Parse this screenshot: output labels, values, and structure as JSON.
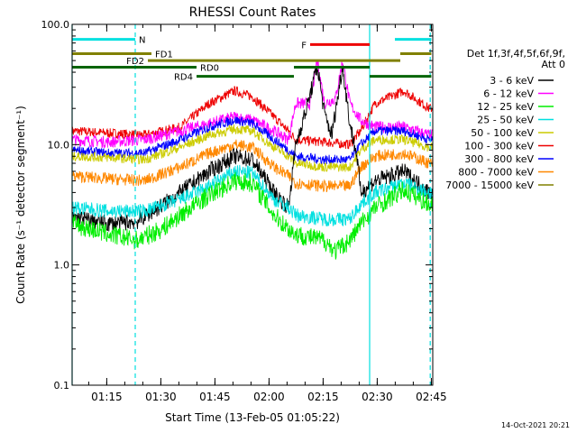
{
  "chart_data": {
    "type": "line",
    "title": "RHESSI Count Rates",
    "xlabel": "Start Time (13-Feb-05 01:05:22)",
    "ylabel": "Count Rate (s⁻¹ detector segment⁻¹)",
    "y_scale": "log",
    "ylim": [
      0.1,
      100.0
    ],
    "xlim_minutes": [
      0.0,
      100.0
    ],
    "yticks": [
      {
        "value": 0.1,
        "label": "0.1"
      },
      {
        "value": 1.0,
        "label": "1.0"
      },
      {
        "value": 10.0,
        "label": "10.0"
      },
      {
        "value": 100.0,
        "label": "100.0"
      }
    ],
    "xticks": [
      {
        "minutes": 9.6,
        "label": "01:15"
      },
      {
        "minutes": 24.6,
        "label": "01:30"
      },
      {
        "minutes": 39.6,
        "label": "01:45"
      },
      {
        "minutes": 54.6,
        "label": "02:00"
      },
      {
        "minutes": 69.6,
        "label": "02:15"
      },
      {
        "minutes": 84.6,
        "label": "02:30"
      },
      {
        "minutes": 99.6,
        "label": "02:45"
      }
    ],
    "legend": {
      "placement": "right",
      "header": [
        "Det 1f,3f,4f,5f,6f,9f,",
        "Att 0"
      ],
      "entries": [
        {
          "label": "3 - 6 keV",
          "color": "#000000"
        },
        {
          "label": "6 - 12 keV",
          "color": "#ff00ff"
        },
        {
          "label": "12 - 25 keV",
          "color": "#00ee00"
        },
        {
          "label": "25 - 50 keV",
          "color": "#00e0e0"
        },
        {
          "label": "50 - 100 keV",
          "color": "#cccc00"
        },
        {
          "label": "100 - 300 keV",
          "color": "#ee0000"
        },
        {
          "label": "300 - 800 keV",
          "color": "#0000ff"
        },
        {
          "label": "800 - 7000 keV",
          "color": "#ff8800"
        },
        {
          "label": "7000 - 15000 keV",
          "color": "#808000"
        }
      ]
    },
    "series": [
      {
        "band": "100 - 300 keV",
        "color": "#ee0000",
        "noise": 0.04,
        "points": [
          [
            0,
            13
          ],
          [
            10,
            12.5
          ],
          [
            20,
            12
          ],
          [
            30,
            14
          ],
          [
            38,
            22
          ],
          [
            45,
            28
          ],
          [
            50,
            25
          ],
          [
            56,
            17
          ],
          [
            60,
            13
          ],
          [
            62,
            11
          ],
          [
            70,
            10.5
          ],
          [
            77,
            10
          ],
          [
            80,
            13
          ],
          [
            84,
            22
          ],
          [
            92,
            28
          ],
          [
            99,
            20
          ]
        ]
      },
      {
        "band": "6 - 12 keV",
        "color": "#ff00ff",
        "noise": 0.05,
        "points": [
          [
            0,
            11
          ],
          [
            10,
            10.5
          ],
          [
            20,
            11
          ],
          [
            30,
            13
          ],
          [
            38,
            15
          ],
          [
            45,
            17
          ],
          [
            50,
            16
          ],
          [
            56,
            13
          ],
          [
            60,
            11
          ],
          [
            62,
            22
          ],
          [
            66,
            22
          ],
          [
            68,
            50
          ],
          [
            70,
            22
          ],
          [
            73,
            24
          ],
          [
            75,
            50
          ],
          [
            77,
            22
          ],
          [
            80,
            16
          ],
          [
            84,
            14
          ],
          [
            92,
            14
          ],
          [
            99,
            12
          ]
        ]
      },
      {
        "band": "300 - 800 keV",
        "color": "#0000ff",
        "noise": 0.04,
        "points": [
          [
            0,
            9
          ],
          [
            10,
            8.5
          ],
          [
            20,
            8.5
          ],
          [
            30,
            11
          ],
          [
            38,
            14
          ],
          [
            45,
            16
          ],
          [
            50,
            15
          ],
          [
            56,
            11
          ],
          [
            60,
            9
          ],
          [
            62,
            8
          ],
          [
            70,
            7.5
          ],
          [
            77,
            7.5
          ],
          [
            80,
            10
          ],
          [
            84,
            13
          ],
          [
            92,
            13
          ],
          [
            99,
            11
          ]
        ]
      },
      {
        "band": "50 - 100 keV",
        "color": "#cccc00",
        "noise": 0.04,
        "points": [
          [
            0,
            8
          ],
          [
            10,
            7.8
          ],
          [
            20,
            7.5
          ],
          [
            30,
            9.5
          ],
          [
            38,
            12
          ],
          [
            45,
            13.5
          ],
          [
            50,
            13
          ],
          [
            56,
            9.5
          ],
          [
            60,
            8
          ],
          [
            62,
            7
          ],
          [
            70,
            6.5
          ],
          [
            77,
            6.5
          ],
          [
            80,
            9
          ],
          [
            84,
            11
          ],
          [
            92,
            11
          ],
          [
            99,
            9.5
          ]
        ]
      },
      {
        "band": "800 - 7000 keV",
        "color": "#ff8800",
        "noise": 0.05,
        "points": [
          [
            0,
            5.5
          ],
          [
            10,
            5.2
          ],
          [
            20,
            5
          ],
          [
            30,
            6.5
          ],
          [
            38,
            8.5
          ],
          [
            45,
            10
          ],
          [
            50,
            9.5
          ],
          [
            56,
            6.5
          ],
          [
            60,
            5.5
          ],
          [
            62,
            4.8
          ],
          [
            70,
            4.5
          ],
          [
            77,
            4.5
          ],
          [
            80,
            6.5
          ],
          [
            84,
            8
          ],
          [
            92,
            8.5
          ],
          [
            99,
            7
          ]
        ]
      },
      {
        "band": "3 - 6 keV",
        "color": "#000000",
        "noise": 0.07,
        "points": [
          [
            0,
            2.5
          ],
          [
            10,
            2.2
          ],
          [
            18,
            2.3
          ],
          [
            24,
            3
          ],
          [
            30,
            4
          ],
          [
            38,
            6
          ],
          [
            45,
            8
          ],
          [
            50,
            7.5
          ],
          [
            56,
            4
          ],
          [
            60,
            3
          ],
          [
            62,
            10
          ],
          [
            65,
            20
          ],
          [
            68,
            45
          ],
          [
            70,
            18
          ],
          [
            72,
            12
          ],
          [
            75,
            45
          ],
          [
            77,
            15
          ],
          [
            79,
            8
          ],
          [
            80,
            4
          ],
          [
            84,
            5
          ],
          [
            92,
            6
          ],
          [
            99,
            4
          ]
        ]
      },
      {
        "band": "25 - 50 keV",
        "color": "#00e0e0",
        "noise": 0.06,
        "points": [
          [
            0,
            3
          ],
          [
            10,
            2.8
          ],
          [
            20,
            2.8
          ],
          [
            30,
            3.5
          ],
          [
            38,
            4.5
          ],
          [
            45,
            6
          ],
          [
            50,
            5.8
          ],
          [
            56,
            3.5
          ],
          [
            60,
            3
          ],
          [
            62,
            2.6
          ],
          [
            70,
            2.4
          ],
          [
            77,
            2.4
          ],
          [
            80,
            3.2
          ],
          [
            84,
            4
          ],
          [
            92,
            4.8
          ],
          [
            99,
            4
          ]
        ]
      },
      {
        "band": "12 - 25 keV",
        "color": "#00ee00",
        "noise": 0.08,
        "points": [
          [
            0,
            2.2
          ],
          [
            10,
            1.8
          ],
          [
            18,
            1.6
          ],
          [
            25,
            2
          ],
          [
            30,
            2.6
          ],
          [
            38,
            3.8
          ],
          [
            45,
            5
          ],
          [
            50,
            4.8
          ],
          [
            56,
            2.6
          ],
          [
            60,
            2
          ],
          [
            62,
            1.8
          ],
          [
            70,
            1.6
          ],
          [
            73,
            1.3
          ],
          [
            77,
            1.6
          ],
          [
            80,
            2.2
          ],
          [
            84,
            3
          ],
          [
            92,
            4.2
          ],
          [
            99,
            3.2
          ]
        ]
      }
    ],
    "annotations": {
      "vertical_lines": [
        {
          "minutes": 0,
          "color": "#00e0e0",
          "style": "solid"
        },
        {
          "minutes": 17.5,
          "color": "#00e0e0",
          "style": "dashed"
        },
        {
          "minutes": 82.5,
          "color": "#00e0e0",
          "style": "solid"
        },
        {
          "minutes": 99.3,
          "color": "#00e0e0",
          "style": "dashed"
        }
      ],
      "flag_bars": [
        {
          "label": "N",
          "color": "#00e0e0",
          "y_value": 75,
          "segments": [
            [
              0,
              17.5
            ],
            [
              89.5,
              99.6
            ]
          ]
        },
        {
          "label": "FD1",
          "color": "#808000",
          "y_value": 57,
          "segments": [
            [
              0,
              22
            ]
          ]
        },
        {
          "label": "FD2",
          "color": "#808000",
          "y_value": 50,
          "segments": [
            [
              21,
              91
            ]
          ]
        },
        {
          "label": "RD0",
          "color": "#006400",
          "y_value": 44,
          "segments": [
            [
              0,
              34.5
            ],
            [
              61.5,
              82.5
            ]
          ]
        },
        {
          "label": "RD4",
          "color": "#006400",
          "y_value": 37,
          "segments": [
            [
              34.5,
              61.5
            ],
            [
              82.5,
              99.6
            ]
          ]
        },
        {
          "label": "F",
          "color": "#ee0000",
          "y_value": 68,
          "segments": [
            [
              66,
              82.5
            ]
          ]
        },
        {
          "label": "",
          "color": "#808000",
          "y_value": 57,
          "segments": [
            [
              91,
              99.6
            ]
          ]
        }
      ]
    },
    "timestamp": "14-Oct-2021 20:21"
  }
}
